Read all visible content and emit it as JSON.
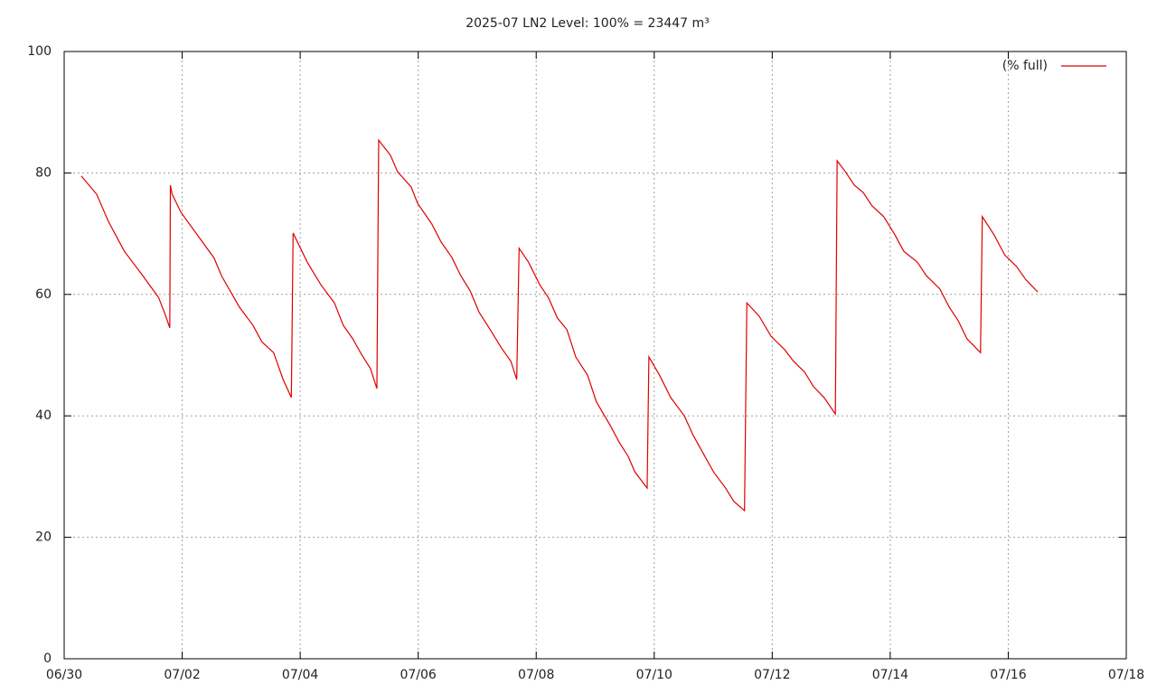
{
  "chart_data": {
    "type": "line",
    "title": "2025-07 LN2 Level: 100% = 23447 m³",
    "x": [
      0.29,
      0.55,
      0.75,
      1.02,
      1.3,
      1.45,
      1.6,
      1.7,
      1.79,
      1.8,
      1.83,
      1.98,
      2.54,
      2.67,
      2.97,
      3.2,
      3.35,
      3.55,
      3.71,
      3.85,
      3.88,
      4.12,
      4.35,
      4.58,
      4.73,
      4.89,
      5.04,
      5.19,
      5.3,
      5.33,
      5.53,
      5.65,
      5.88,
      5.99,
      6.23,
      6.39,
      6.57,
      6.72,
      6.88,
      7.03,
      7.22,
      7.41,
      7.57,
      7.67,
      7.71,
      7.87,
      8.06,
      8.21,
      8.36,
      8.52,
      8.67,
      8.87,
      9.02,
      9.25,
      9.41,
      9.56,
      9.67,
      9.88,
      9.91,
      10.09,
      10.28,
      10.51,
      10.66,
      10.86,
      11.01,
      11.21,
      11.35,
      11.53,
      11.57,
      11.78,
      11.98,
      12.21,
      12.36,
      12.55,
      12.7,
      12.88,
      13.07,
      13.1,
      13.24,
      13.39,
      13.54,
      13.69,
      13.89,
      14.08,
      14.23,
      14.46,
      14.61,
      14.84,
      15,
      15.15,
      15.3,
      15.53,
      15.56,
      15.76,
      15.94,
      16.14,
      16.3,
      16.5
    ],
    "series": [
      {
        "name": "(% full)",
        "color": "#e00000",
        "values": [
          79.5,
          76.5,
          72,
          67.1,
          63.5,
          61.5,
          59.5,
          57,
          54.5,
          78,
          76.5,
          73.5,
          66,
          63,
          57.9,
          54.9,
          52.2,
          50.4,
          46,
          43,
          70.1,
          65.3,
          61.6,
          58.6,
          54.9,
          52.7,
          50.1,
          47.8,
          44.5,
          85.4,
          82.9,
          80.2,
          77.7,
          75,
          71.6,
          68.6,
          66.1,
          63.1,
          60.6,
          57.1,
          54.2,
          51.2,
          49,
          46,
          67.6,
          65.3,
          61.6,
          59.4,
          56.1,
          54.2,
          49.7,
          46.7,
          42.3,
          38.5,
          35.6,
          33.3,
          30.8,
          28.1,
          49.7,
          46.7,
          43,
          40,
          36.8,
          33.3,
          30.7,
          28.1,
          25.9,
          24.4,
          58.6,
          56.4,
          53.1,
          50.9,
          49,
          47.2,
          44.8,
          43,
          40.3,
          82,
          80.2,
          78,
          76.8,
          74.6,
          72.8,
          69.8,
          67.1,
          65.3,
          63.1,
          60.9,
          57.9,
          55.7,
          52.7,
          50.4,
          72.8,
          69.8,
          66.5,
          64.6,
          62.4,
          60.4
        ]
      }
    ],
    "xlim": [
      0,
      18
    ],
    "xticks": [
      {
        "value": 0,
        "label": "06/30"
      },
      {
        "value": 2,
        "label": "07/02"
      },
      {
        "value": 4,
        "label": "07/04"
      },
      {
        "value": 6,
        "label": "07/06"
      },
      {
        "value": 8,
        "label": "07/08"
      },
      {
        "value": 10,
        "label": "07/10"
      },
      {
        "value": 12,
        "label": "07/12"
      },
      {
        "value": 14,
        "label": "07/14"
      },
      {
        "value": 16,
        "label": "07/16"
      },
      {
        "value": 18,
        "label": "07/18"
      }
    ],
    "ylim": [
      0,
      100
    ],
    "yticks": [
      0,
      20,
      40,
      60,
      80,
      100
    ],
    "grid": true,
    "legend": "top-right"
  }
}
